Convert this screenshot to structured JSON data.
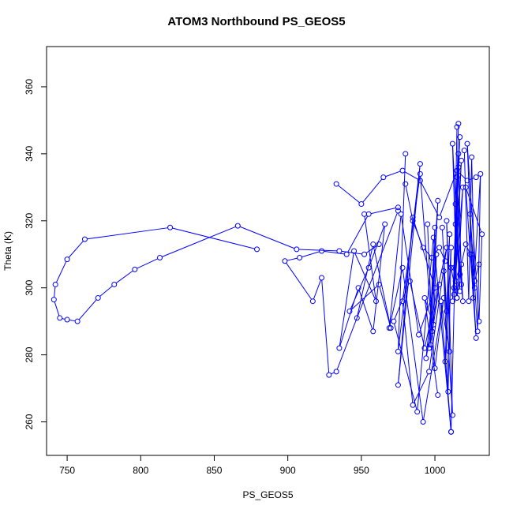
{
  "chart_data": {
    "type": "line",
    "title": "ATOM3 Northbound PS_GEOS5",
    "xlabel": "PS_GEOS5",
    "ylabel": "Theta (K)",
    "xlim": [
      736,
      1037
    ],
    "ylim": [
      250,
      372
    ],
    "xticks": [
      750,
      800,
      850,
      900,
      950,
      1000
    ],
    "yticks": [
      260,
      280,
      300,
      320,
      340,
      360
    ],
    "grid": false,
    "line_color": "#0000ff",
    "marker": "open-circle",
    "series": [
      {
        "x": [
          975,
          933,
          928,
          923,
          917,
          898,
          908,
          923,
          940,
          955,
          975
        ],
        "y": [
          323,
          275,
          274,
          303,
          296,
          308,
          309,
          311,
          310,
          322,
          324
        ]
      },
      {
        "x": [
          980,
          985,
          992,
          998,
          1003,
          1007,
          1011,
          1015,
          1018,
          1021,
          1024,
          1027,
          1030
        ],
        "y": [
          331,
          320,
          312,
          309,
          312,
          308,
          306,
          297,
          307,
          313,
          310,
          302,
          307
        ]
      },
      {
        "x": [
          879,
          820,
          762,
          750,
          742,
          741,
          745,
          750,
          757,
          771,
          782,
          796,
          813,
          866,
          906,
          935,
          952,
          962
        ],
        "y": [
          311.5,
          318,
          314.5,
          308.5,
          301,
          296.5,
          291,
          290.5,
          290,
          297,
          301,
          305.5,
          309,
          318.5,
          311.5,
          311,
          310,
          313
        ]
      },
      {
        "x": [
          933,
          950,
          965,
          978,
          990,
          1003,
          1015,
          1022,
          1028
        ],
        "y": [
          331,
          325,
          333,
          335,
          332,
          321,
          335,
          332,
          333
        ]
      },
      {
        "x": [
          980,
          975,
          990,
          975,
          985,
          1000,
          989,
          977,
          969,
          978,
          992,
          1006,
          1000,
          990,
          978,
          985,
          996,
          1008,
          993,
          983,
          972,
          988,
          999,
          1011,
          1016
        ],
        "y": [
          340,
          281,
          337,
          271,
          321,
          300,
          286,
          322,
          288,
          306,
          260,
          297,
          276,
          334,
          296,
          265,
          275,
          312,
          282,
          302,
          290,
          263,
          315,
          257,
          349
        ]
      },
      {
        "x": [
          1015,
          1013,
          1017,
          1012,
          1018,
          1014,
          1016,
          1013,
          1019,
          1015,
          1012,
          1017,
          1014,
          1018,
          1016,
          1013,
          1015,
          1019,
          1014,
          1017
        ],
        "y": [
          348,
          300,
          345,
          296,
          338,
          302,
          336,
          298,
          330,
          297,
          343,
          299,
          325,
          301,
          340,
          306,
          333,
          296,
          319,
          304
        ]
      },
      {
        "x": [
          1020,
          1023,
          1025,
          1027,
          1024,
          1029,
          1031,
          1026,
          1022,
          1030,
          1032,
          1021,
          1028,
          1025
        ],
        "y": [
          341,
          296,
          339,
          300,
          322,
          287,
          334,
          297,
          343,
          290,
          316,
          330,
          285,
          310
        ]
      },
      {
        "x": [
          1005,
          1008,
          1010,
          1007,
          1011,
          1009,
          1006,
          1012,
          1008,
          1010,
          1004,
          1011
        ],
        "y": [
          318,
          293,
          316,
          278,
          312,
          269,
          305,
          262,
          320,
          281,
          296,
          257
        ]
      },
      {
        "x": [
          952,
          960,
          945,
          935,
          948,
          958,
          966,
          955,
          942,
          962,
          970,
          958,
          947
        ],
        "y": [
          322,
          296,
          311,
          282,
          300,
          287,
          319,
          306,
          293,
          301,
          288,
          313,
          291
        ]
      },
      {
        "x": [
          995,
          998,
          1002,
          996,
          1000,
          997,
          1003,
          994,
          1001,
          999,
          993,
          1002
        ],
        "y": [
          319,
          287,
          326,
          282,
          318,
          283,
          301,
          279,
          310,
          289,
          297,
          268
        ]
      }
    ]
  }
}
